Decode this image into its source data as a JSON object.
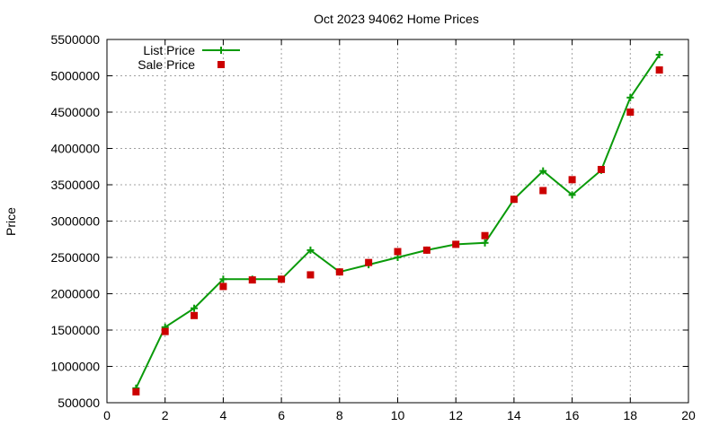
{
  "chart_data": {
    "type": "line",
    "title": "Oct 2023 94062 Home Prices",
    "xlabel": "",
    "ylabel": "Price",
    "xlim": [
      0,
      20
    ],
    "ylim": [
      500000,
      5500000
    ],
    "x_ticks": [
      0,
      2,
      4,
      6,
      8,
      10,
      12,
      14,
      16,
      18,
      20
    ],
    "y_ticks": [
      500000,
      1000000,
      1500000,
      2000000,
      2500000,
      3000000,
      3500000,
      4000000,
      4500000,
      5000000,
      5500000
    ],
    "grid": true,
    "legend_position": "top-left",
    "series": [
      {
        "name": "List Price",
        "style": "line-with-plus-markers",
        "color": "#0a9a0a",
        "points": [
          [
            1,
            700000
          ],
          [
            2,
            1540000
          ],
          [
            3,
            1800000
          ],
          [
            4,
            2200000
          ],
          [
            5,
            2200000
          ],
          [
            6,
            2200000
          ],
          [
            7,
            2600000
          ],
          [
            8,
            2300000
          ],
          [
            9,
            2400000
          ],
          [
            10,
            2500000
          ],
          [
            11,
            2600000
          ],
          [
            12,
            2680000
          ],
          [
            13,
            2700000
          ],
          [
            14,
            3300000
          ],
          [
            15,
            3690000
          ],
          [
            16,
            3360000
          ],
          [
            17,
            3700000
          ],
          [
            18,
            4700000
          ],
          [
            19,
            5290000
          ]
        ]
      },
      {
        "name": "Sale Price",
        "style": "square-markers",
        "color": "#cc0000",
        "points": [
          [
            1,
            650000
          ],
          [
            2,
            1480000
          ],
          [
            3,
            1700000
          ],
          [
            4,
            2100000
          ],
          [
            5,
            2190000
          ],
          [
            6,
            2200000
          ],
          [
            7,
            2260000
          ],
          [
            8,
            2300000
          ],
          [
            9,
            2430000
          ],
          [
            10,
            2580000
          ],
          [
            11,
            2600000
          ],
          [
            12,
            2680000
          ],
          [
            13,
            2800000
          ],
          [
            14,
            3300000
          ],
          [
            15,
            3420000
          ],
          [
            16,
            3570000
          ],
          [
            17,
            3710000
          ],
          [
            18,
            4500000
          ],
          [
            19,
            5080000
          ]
        ]
      }
    ]
  }
}
